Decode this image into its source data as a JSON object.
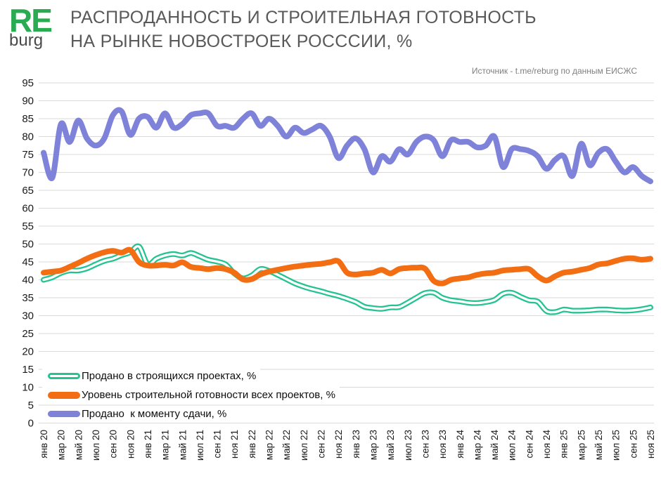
{
  "header": {
    "logo_re": "RE",
    "logo_burg": "burg",
    "title_line1": "РАСПРОДАННОСТЬ И СТРОИТЕЛЬНАЯ ГОТОВНОСТЬ",
    "title_line2": "НА РЫНКЕ НОВОСТРОЕК РОСССИИ, %",
    "source": "Источник - t.me/reburg по данным ЕИСЖС"
  },
  "colors": {
    "teal": "#25c392",
    "orange": "#f36d13",
    "purple": "#7e82d8",
    "green": "#2aab52",
    "grid": "#d9d9d9",
    "axis_text": "#1a1a1a"
  },
  "chart_data": {
    "type": "line",
    "title": "РАСПРОДАННОСТЬ И СТРОИТЕЛЬНАЯ ГОТОВНОСТЬ НА РЫНКЕ НОВОСТРОЕК РОСССИИ, %",
    "xlabel": "",
    "ylabel": "",
    "ylim": [
      0,
      95
    ],
    "y_tick_step": 5,
    "grid": true,
    "legend_position": "bottom-left-inside",
    "x_is_monthly_from": "янв 20",
    "x_is_monthly_to": "ноя 25",
    "x_tick_labels": [
      "янв 20",
      "мар 20",
      "май 20",
      "июл 20",
      "сен 20",
      "ноя 20",
      "янв 21",
      "мар 21",
      "май 21",
      "июл 21",
      "сен 21",
      "ноя 21",
      "янв 22",
      "мар 22",
      "май 22",
      "июл 22",
      "сен 22",
      "ноя 22",
      "янв 23",
      "мар 23",
      "май 23",
      "июл 23",
      "сен 23",
      "ноя 23",
      "янв 24",
      "мар 24",
      "май 24",
      "июл 24",
      "сен 24",
      "ноя 24",
      "янв 25",
      "мар 25",
      "май 25",
      "июл 25",
      "сен 25",
      "ноя 25"
    ],
    "series": [
      {
        "name": "Продано в строящихся проектах, %",
        "style": "outlined",
        "color_key": "teal",
        "values": [
          40.0,
          40.7,
          41.9,
          42.6,
          42.6,
          43.2,
          44.3,
          45.3,
          45.9,
          46.9,
          47.7,
          49.3,
          44.4,
          45.9,
          46.8,
          47.2,
          46.8,
          47.5,
          46.6,
          45.6,
          45.1,
          44.3,
          41.8,
          40.4,
          41.2,
          43.0,
          42.5,
          41.4,
          40.2,
          39.0,
          38.1,
          37.4,
          36.8,
          36.1,
          35.5,
          34.7,
          33.8,
          32.5,
          32.1,
          31.9,
          32.3,
          32.4,
          33.6,
          35.0,
          36.3,
          36.4,
          35.0,
          34.3,
          34.0,
          33.6,
          33.5,
          33.8,
          34.4,
          36.1,
          36.4,
          35.3,
          34.3,
          33.9,
          31.3,
          31.0,
          31.7,
          31.4,
          31.4,
          31.5,
          31.7,
          31.7,
          31.5,
          31.4,
          31.5,
          31.8,
          32.3
        ]
      },
      {
        "name": "Уровень строительной готовности всех проектов, %",
        "style": "solid",
        "color_key": "orange",
        "values": [
          42.0,
          42.3,
          42.6,
          43.6,
          44.7,
          45.9,
          46.9,
          47.7,
          48.1,
          47.6,
          48.3,
          45.0,
          44.0,
          44.0,
          44.2,
          44.0,
          44.9,
          43.6,
          43.3,
          43.0,
          43.3,
          43.0,
          42.0,
          40.1,
          40.2,
          41.5,
          42.3,
          42.8,
          43.3,
          43.7,
          44.0,
          44.3,
          44.5,
          44.9,
          45.2,
          42.0,
          41.5,
          41.8,
          42.0,
          42.8,
          41.8,
          43.0,
          43.3,
          43.4,
          43.1,
          39.7,
          39.0,
          40.0,
          40.4,
          40.7,
          41.4,
          41.8,
          42.0,
          42.6,
          42.8,
          43.0,
          43.0,
          41.0,
          39.8,
          41.0,
          42.0,
          42.3,
          42.8,
          43.3,
          44.3,
          44.6,
          45.3,
          45.9,
          46.0,
          45.6,
          45.9
        ]
      },
      {
        "name": "Продано  к моменту сдачи, %",
        "style": "solid",
        "color_key": "purple",
        "values": [
          75.5,
          68.5,
          83.5,
          78.5,
          84.5,
          79.5,
          77.5,
          79.5,
          86.0,
          87.0,
          80.5,
          85.0,
          85.5,
          82.5,
          86.5,
          82.5,
          83.5,
          86.0,
          86.5,
          86.5,
          83.0,
          83.0,
          82.5,
          85.0,
          86.5,
          83.0,
          85.0,
          83.0,
          80.0,
          82.5,
          81.0,
          82.0,
          83.0,
          80.0,
          74.0,
          77.5,
          79.5,
          76.5,
          70.0,
          74.5,
          73.0,
          76.5,
          75.0,
          78.5,
          80.0,
          79.0,
          74.5,
          79.0,
          78.5,
          78.5,
          77.0,
          77.5,
          80.0,
          71.5,
          76.5,
          76.5,
          76.0,
          74.5,
          71.0,
          73.5,
          74.5,
          69.0,
          78.0,
          72.0,
          75.5,
          76.5,
          73.0,
          70.0,
          71.5,
          69.0,
          67.5
        ]
      }
    ]
  }
}
